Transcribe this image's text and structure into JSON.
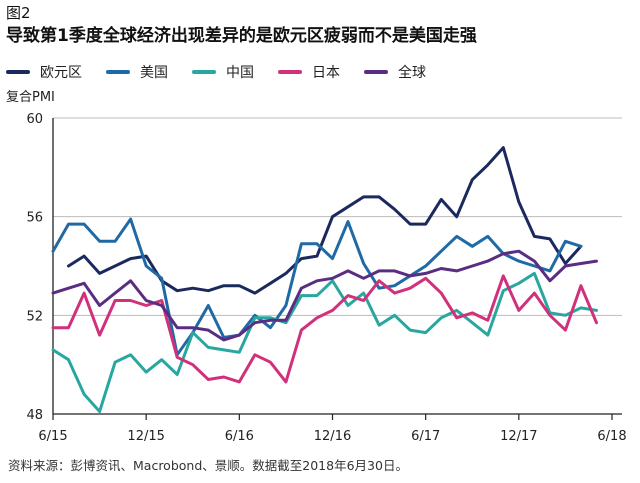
{
  "figure_label": "图2",
  "source_note": "资料来源：彭博资讯、Macrobond、景顺。数据截至2018年6月30日。",
  "chart_data": {
    "type": "line",
    "title": "导致第1季度全球经济出现差异的是欧元区疲弱而不是美国走强",
    "ylabel": "复合PMI",
    "xlabel": "",
    "ylim": [
      48,
      60
    ],
    "yticks": [
      48,
      52,
      56,
      60
    ],
    "grid": "horizontal",
    "legend_position": "top",
    "x_tick_labels": [
      "6/15",
      "12/15",
      "6/16",
      "12/16",
      "6/17",
      "12/17",
      "6/18"
    ],
    "x_tick_months": [
      0,
      6,
      12,
      18,
      24,
      30,
      36
    ],
    "series": [
      {
        "name": "欧元区",
        "color": "#1b2a5e",
        "values": [
          null,
          54.0,
          54.4,
          53.7,
          54.0,
          54.3,
          54.4,
          53.4,
          53.0,
          53.1,
          53.0,
          53.2,
          53.2,
          52.9,
          53.3,
          53.7,
          54.3,
          54.4,
          56.0,
          56.4,
          56.8,
          56.8,
          56.3,
          55.7,
          55.7,
          56.7,
          56.0,
          57.5,
          58.1,
          58.8,
          56.6,
          55.2,
          55.1,
          54.1,
          54.8
        ]
      },
      {
        "name": "美国",
        "color": "#1f6aa5",
        "values": [
          54.6,
          55.7,
          55.7,
          55.0,
          55.0,
          55.9,
          54.0,
          53.5,
          50.4,
          51.3,
          52.4,
          51.1,
          51.2,
          52.0,
          51.5,
          52.4,
          54.9,
          54.9,
          54.3,
          55.8,
          54.1,
          53.1,
          53.2,
          53.6,
          54.0,
          54.6,
          55.2,
          54.8,
          55.2,
          54.5,
          54.2,
          54.0,
          53.8,
          55.0,
          54.8
        ]
      },
      {
        "name": "中国",
        "color": "#2aa6a0",
        "values": [
          50.6,
          50.2,
          48.8,
          48.1,
          50.1,
          50.4,
          49.7,
          50.2,
          49.6,
          51.3,
          50.7,
          50.6,
          50.5,
          51.9,
          51.9,
          51.7,
          52.8,
          52.8,
          53.4,
          52.4,
          52.9,
          51.6,
          52.0,
          51.4,
          51.3,
          51.9,
          52.2,
          51.7,
          51.2,
          53.0,
          53.3,
          53.7,
          52.1,
          52.0,
          52.3,
          52.2
        ]
      },
      {
        "name": "日本",
        "color": "#d1307a",
        "values": [
          51.5,
          51.5,
          52.9,
          51.2,
          52.6,
          52.6,
          52.4,
          52.6,
          50.3,
          50.0,
          49.4,
          49.5,
          49.3,
          50.4,
          50.1,
          49.3,
          51.4,
          51.9,
          52.2,
          52.8,
          52.6,
          53.4,
          52.9,
          53.1,
          53.5,
          52.9,
          51.9,
          52.1,
          51.8,
          53.6,
          52.2,
          52.9,
          52.0,
          51.4,
          53.2,
          51.7
        ]
      },
      {
        "name": "全球",
        "color": "#5b2d82",
        "values": [
          52.9,
          53.1,
          53.3,
          52.4,
          52.9,
          53.4,
          52.6,
          52.4,
          51.5,
          51.5,
          51.4,
          51.0,
          51.2,
          51.7,
          51.8,
          51.8,
          53.1,
          53.4,
          53.5,
          53.8,
          53.5,
          53.8,
          53.8,
          53.6,
          53.7,
          53.9,
          53.8,
          54.0,
          54.2,
          54.5,
          54.6,
          54.2,
          53.4,
          54.0,
          54.1,
          54.2
        ]
      }
    ]
  }
}
